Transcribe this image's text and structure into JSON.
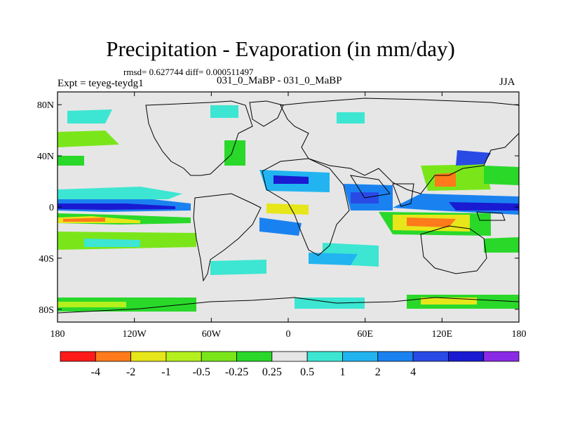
{
  "header": {
    "title": "Precipitation - Evaporation (in mm/day)",
    "stats": "rmsd= 0.627744 diff= 0.000511497",
    "expt": "Expt = teyeg-teydg1",
    "experiments": "031_0_MaBP - 031_0_MaBP",
    "season": "JJA"
  },
  "axes": {
    "x_ticks": [
      {
        "lon": -180,
        "label": "180"
      },
      {
        "lon": -120,
        "label": "120W"
      },
      {
        "lon": -60,
        "label": "60W"
      },
      {
        "lon": 0,
        "label": "0"
      },
      {
        "lon": 60,
        "label": "60E"
      },
      {
        "lon": 120,
        "label": "120E"
      },
      {
        "lon": 180,
        "label": "180"
      }
    ],
    "y_ticks": [
      {
        "lat": 80,
        "label": "80N"
      },
      {
        "lat": 40,
        "label": "40N"
      },
      {
        "lat": 0,
        "label": "0"
      },
      {
        "lat": -40,
        "label": "40S"
      },
      {
        "lat": -80,
        "label": "80S"
      }
    ],
    "lon_range": [
      -180,
      180
    ],
    "lat_range": [
      -90,
      90
    ]
  },
  "colorbar": {
    "colors": [
      "#ff1a1a",
      "#ff7a1a",
      "#e6e61a",
      "#b4f01e",
      "#7ae61a",
      "#2ad82a",
      "#e6e6e6",
      "#3ce6d2",
      "#22b4f0",
      "#1a82f0",
      "#2a4ae6",
      "#1a1ad2",
      "#8a2ae6"
    ],
    "labels": [
      "-4",
      "-2",
      "-1",
      "-0.5",
      "-0.25",
      "0.25",
      "0.5",
      "1",
      "2",
      "4"
    ]
  },
  "colors": {
    "neutral": "#e6e6e6"
  }
}
